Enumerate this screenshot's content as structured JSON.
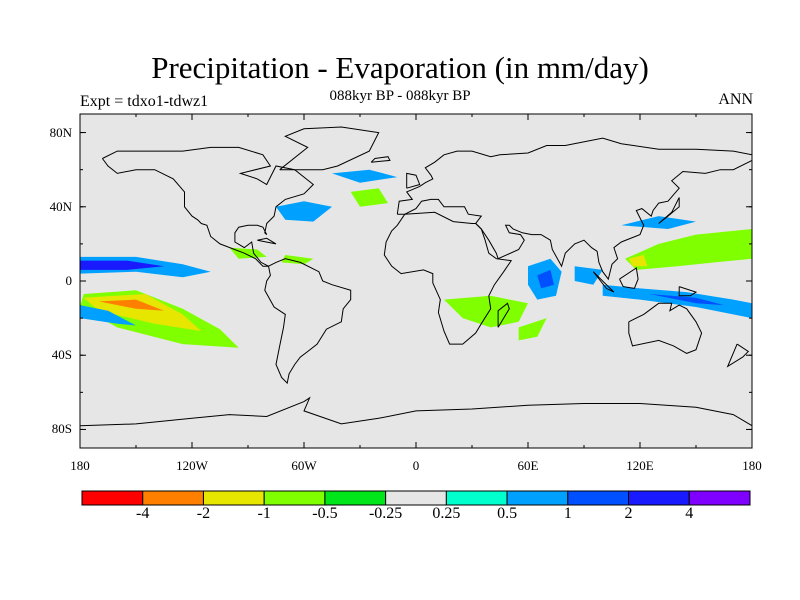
{
  "title": "Precipitation - Evaporation (in mm/day)",
  "subtitle": "088kyr BP - 088kyr BP",
  "left_string": "Expt = tdxo1-tdwz1",
  "right_string": "ANN",
  "map": {
    "projection": "cylindrical-equidistant",
    "lon_range": [
      -180,
      180
    ],
    "lat_range": [
      -90,
      90
    ],
    "background_color": "#e6e6e6",
    "lat_ticks": [
      {
        "lat": 80,
        "label": "80N"
      },
      {
        "lat": 40,
        "label": "40N"
      },
      {
        "lat": 0,
        "label": "0"
      },
      {
        "lat": -40,
        "label": "40S"
      },
      {
        "lat": -80,
        "label": "80S"
      }
    ],
    "lon_ticks": [
      {
        "lon": -180,
        "label": "180"
      },
      {
        "lon": -120,
        "label": "120W"
      },
      {
        "lon": -60,
        "label": "60W"
      },
      {
        "lon": 0,
        "label": "0"
      },
      {
        "lon": 60,
        "label": "60E"
      },
      {
        "lon": 120,
        "label": "120E"
      },
      {
        "lon": 180,
        "label": "180"
      }
    ]
  },
  "colorbar": {
    "colors": [
      "#ff0000",
      "#ff7f00",
      "#e6e600",
      "#80ff00",
      "#00e61a",
      "#e6e6e6",
      "#00ffcc",
      "#00a0ff",
      "#0050ff",
      "#1a1aff",
      "#8000ff"
    ],
    "labels": [
      "-4",
      "-2",
      "-1",
      "-0.5",
      "-0.25",
      "0.25",
      "0.5",
      "1",
      "2",
      "4"
    ]
  },
  "fields": [
    {
      "level": "0.5",
      "points": [
        [
          -180,
          13
        ],
        [
          -150,
          13
        ],
        [
          -125,
          9
        ],
        [
          -110,
          5
        ],
        [
          -125,
          2
        ],
        [
          -150,
          5
        ],
        [
          -180,
          4
        ]
      ]
    },
    {
      "level": "2",
      "points": [
        [
          -180,
          11
        ],
        [
          -155,
          11
        ],
        [
          -135,
          8
        ],
        [
          -155,
          6
        ],
        [
          -180,
          6
        ]
      ]
    },
    {
      "level": "-0.5",
      "points": [
        [
          -178,
          -7
        ],
        [
          -150,
          -5
        ],
        [
          -125,
          -15
        ],
        [
          -105,
          -26
        ],
        [
          -95,
          -36
        ],
        [
          -125,
          -34
        ],
        [
          -160,
          -25
        ],
        [
          -180,
          -14
        ]
      ]
    },
    {
      "level": "-1",
      "points": [
        [
          -178,
          -9
        ],
        [
          -145,
          -7
        ],
        [
          -125,
          -18
        ],
        [
          -115,
          -27
        ],
        [
          -140,
          -23
        ],
        [
          -170,
          -16
        ]
      ]
    },
    {
      "level": "-2",
      "points": [
        [
          -170,
          -11
        ],
        [
          -150,
          -10
        ],
        [
          -135,
          -16
        ],
        [
          -150,
          -15
        ]
      ]
    },
    {
      "level": "0.5",
      "points": [
        [
          -180,
          -13
        ],
        [
          -165,
          -16
        ],
        [
          -150,
          -24
        ],
        [
          -160,
          -23
        ],
        [
          -180,
          -20
        ]
      ]
    },
    {
      "level": "-0.5",
      "points": [
        [
          -100,
          18
        ],
        [
          -85,
          17
        ],
        [
          -80,
          13
        ],
        [
          -95,
          12
        ]
      ]
    },
    {
      "level": "-0.5",
      "points": [
        [
          -70,
          14
        ],
        [
          -55,
          12
        ],
        [
          -60,
          9
        ],
        [
          -72,
          10
        ]
      ]
    },
    {
      "level": "0.5",
      "points": [
        [
          -75,
          40
        ],
        [
          -60,
          43
        ],
        [
          -45,
          40
        ],
        [
          -55,
          32
        ],
        [
          -70,
          33
        ]
      ]
    },
    {
      "level": "-0.5",
      "points": [
        [
          -35,
          48
        ],
        [
          -20,
          50
        ],
        [
          -15,
          42
        ],
        [
          -30,
          40
        ]
      ]
    },
    {
      "level": "0.5",
      "points": [
        [
          -45,
          58
        ],
        [
          -25,
          60
        ],
        [
          -10,
          56
        ],
        [
          -30,
          53
        ]
      ]
    },
    {
      "level": "-0.5",
      "points": [
        [
          15,
          -10
        ],
        [
          40,
          -8
        ],
        [
          60,
          -12
        ],
        [
          55,
          -22
        ],
        [
          40,
          -25
        ],
        [
          25,
          -20
        ]
      ]
    },
    {
      "level": "-0.5",
      "points": [
        [
          55,
          -25
        ],
        [
          70,
          -20
        ],
        [
          65,
          -30
        ],
        [
          55,
          -32
        ]
      ]
    },
    {
      "level": "0.5",
      "points": [
        [
          60,
          8
        ],
        [
          72,
          12
        ],
        [
          78,
          5
        ],
        [
          75,
          -8
        ],
        [
          65,
          -10
        ],
        [
          60,
          -2
        ]
      ]
    },
    {
      "level": "1",
      "points": [
        [
          65,
          3
        ],
        [
          72,
          6
        ],
        [
          74,
          -2
        ],
        [
          67,
          -4
        ]
      ]
    },
    {
      "level": "-0.5",
      "points": [
        [
          112,
          12
        ],
        [
          130,
          20
        ],
        [
          150,
          25
        ],
        [
          170,
          27
        ],
        [
          180,
          28
        ],
        [
          180,
          12
        ],
        [
          160,
          10
        ],
        [
          140,
          8
        ],
        [
          118,
          6
        ]
      ]
    },
    {
      "level": "-1",
      "points": [
        [
          114,
          12
        ],
        [
          122,
          14
        ],
        [
          124,
          8
        ],
        [
          116,
          8
        ]
      ]
    },
    {
      "level": "0.5",
      "points": [
        [
          100,
          -2
        ],
        [
          120,
          -4
        ],
        [
          145,
          -6
        ],
        [
          170,
          -10
        ],
        [
          180,
          -12
        ],
        [
          180,
          -20
        ],
        [
          150,
          -14
        ],
        [
          120,
          -10
        ],
        [
          100,
          -8
        ]
      ]
    },
    {
      "level": "1",
      "points": [
        [
          125,
          -7
        ],
        [
          150,
          -9
        ],
        [
          165,
          -13
        ],
        [
          150,
          -12
        ]
      ]
    },
    {
      "level": "0.5",
      "points": [
        [
          85,
          8
        ],
        [
          100,
          6
        ],
        [
          95,
          -2
        ],
        [
          85,
          0
        ]
      ]
    },
    {
      "level": "0.5",
      "points": [
        [
          110,
          30
        ],
        [
          130,
          35
        ],
        [
          150,
          32
        ],
        [
          135,
          28
        ]
      ]
    }
  ],
  "coastlines": [
    [
      [
        -168,
        66
      ],
      [
        -160,
        70
      ],
      [
        -140,
        70
      ],
      [
        -125,
        70
      ],
      [
        -110,
        72
      ],
      [
        -95,
        72
      ],
      [
        -82,
        68
      ],
      [
        -78,
        62
      ],
      [
        -94,
        58
      ],
      [
        -85,
        55
      ],
      [
        -80,
        52
      ],
      [
        -75,
        62
      ],
      [
        -65,
        60
      ],
      [
        -55,
        52
      ],
      [
        -60,
        47
      ],
      [
        -70,
        44
      ],
      [
        -75,
        40
      ],
      [
        -76,
        35
      ],
      [
        -80,
        31
      ],
      [
        -81,
        26
      ],
      [
        -80,
        25
      ],
      [
        -82,
        29
      ],
      [
        -85,
        30
      ],
      [
        -90,
        30
      ],
      [
        -95,
        29
      ],
      [
        -97,
        26
      ],
      [
        -97,
        21
      ],
      [
        -92,
        18
      ],
      [
        -88,
        21
      ],
      [
        -87,
        15
      ],
      [
        -83,
        10
      ],
      [
        -79,
        8
      ],
      [
        -82,
        8
      ],
      [
        -86,
        12
      ],
      [
        -92,
        15
      ],
      [
        -105,
        20
      ],
      [
        -110,
        24
      ],
      [
        -112,
        30
      ],
      [
        -115,
        31
      ],
      [
        -117,
        33
      ],
      [
        -120,
        35
      ],
      [
        -124,
        40
      ],
      [
        -124,
        48
      ],
      [
        -130,
        55
      ],
      [
        -140,
        60
      ],
      [
        -150,
        60
      ],
      [
        -160,
        58
      ],
      [
        -165,
        62
      ],
      [
        -168,
        66
      ]
    ],
    [
      [
        -79,
        8
      ],
      [
        -75,
        10
      ],
      [
        -70,
        12
      ],
      [
        -62,
        10
      ],
      [
        -52,
        5
      ],
      [
        -50,
        0
      ],
      [
        -45,
        -2
      ],
      [
        -35,
        -5
      ],
      [
        -35,
        -10
      ],
      [
        -39,
        -15
      ],
      [
        -40,
        -22
      ],
      [
        -48,
        -26
      ],
      [
        -53,
        -34
      ],
      [
        -58,
        -38
      ],
      [
        -62,
        -41
      ],
      [
        -65,
        -45
      ],
      [
        -68,
        -50
      ],
      [
        -69,
        -55
      ],
      [
        -72,
        -52
      ],
      [
        -75,
        -45
      ],
      [
        -73,
        -35
      ],
      [
        -71,
        -25
      ],
      [
        -70,
        -18
      ],
      [
        -76,
        -14
      ],
      [
        -81,
        -5
      ],
      [
        -80,
        0
      ],
      [
        -78,
        3
      ],
      [
        -79,
        8
      ]
    ],
    [
      [
        -10,
        36
      ],
      [
        -9,
        43
      ],
      [
        -2,
        44
      ],
      [
        -5,
        48
      ],
      [
        2,
        51
      ],
      [
        5,
        53
      ],
      [
        9,
        55
      ],
      [
        8,
        57
      ],
      [
        5,
        61
      ],
      [
        10,
        64
      ],
      [
        15,
        68
      ],
      [
        22,
        70
      ],
      [
        30,
        70
      ],
      [
        40,
        67
      ],
      [
        45,
        68
      ],
      [
        60,
        69
      ],
      [
        70,
        73
      ],
      [
        80,
        73
      ],
      [
        100,
        77
      ],
      [
        110,
        74
      ],
      [
        130,
        71
      ],
      [
        150,
        71
      ],
      [
        170,
        70
      ],
      [
        180,
        68
      ],
      [
        180,
        65
      ],
      [
        170,
        60
      ],
      [
        163,
        60
      ],
      [
        155,
        58
      ],
      [
        143,
        59
      ],
      [
        137,
        54
      ],
      [
        141,
        50
      ],
      [
        135,
        43
      ],
      [
        130,
        42
      ],
      [
        127,
        38
      ],
      [
        126,
        35
      ],
      [
        121,
        39
      ],
      [
        118,
        38
      ],
      [
        122,
        30
      ],
      [
        120,
        25
      ],
      [
        110,
        21
      ],
      [
        106,
        18
      ],
      [
        108,
        12
      ],
      [
        105,
        9
      ],
      [
        103,
        1
      ],
      [
        100,
        5
      ],
      [
        98,
        10
      ],
      [
        97,
        16
      ],
      [
        94,
        18
      ],
      [
        90,
        22
      ],
      [
        85,
        20
      ],
      [
        80,
        15
      ],
      [
        78,
        8
      ],
      [
        73,
        17
      ],
      [
        72,
        22
      ],
      [
        67,
        25
      ],
      [
        62,
        25
      ],
      [
        57,
        26
      ],
      [
        52,
        28
      ],
      [
        50,
        30
      ],
      [
        48,
        30
      ],
      [
        50,
        26
      ],
      [
        56,
        25
      ],
      [
        58,
        22
      ],
      [
        55,
        17
      ],
      [
        44,
        12
      ],
      [
        43,
        15
      ],
      [
        39,
        22
      ],
      [
        35,
        28
      ],
      [
        32,
        31
      ],
      [
        35,
        35
      ],
      [
        28,
        36
      ],
      [
        26,
        40
      ],
      [
        23,
        40
      ],
      [
        20,
        40
      ],
      [
        15,
        40
      ],
      [
        12,
        44
      ],
      [
        8,
        44
      ],
      [
        3,
        43
      ],
      [
        0,
        39
      ],
      [
        -6,
        36
      ],
      [
        -10,
        36
      ]
    ],
    [
      [
        -6,
        36
      ],
      [
        10,
        37
      ],
      [
        20,
        32
      ],
      [
        30,
        31
      ],
      [
        32,
        31
      ],
      [
        35,
        28
      ],
      [
        37,
        22
      ],
      [
        39,
        15
      ],
      [
        43,
        12
      ],
      [
        51,
        11
      ],
      [
        47,
        5
      ],
      [
        42,
        -2
      ],
      [
        39,
        -8
      ],
      [
        40,
        -15
      ],
      [
        35,
        -23
      ],
      [
        32,
        -28
      ],
      [
        25,
        -34
      ],
      [
        18,
        -34
      ],
      [
        15,
        -27
      ],
      [
        12,
        -17
      ],
      [
        13,
        -10
      ],
      [
        9,
        -1
      ],
      [
        9,
        4
      ],
      [
        4,
        6
      ],
      [
        -8,
        4
      ],
      [
        -13,
        8
      ],
      [
        -17,
        14
      ],
      [
        -16,
        21
      ],
      [
        -13,
        27
      ],
      [
        -10,
        30
      ],
      [
        -6,
        36
      ]
    ],
    [
      [
        114,
        -22
      ],
      [
        122,
        -18
      ],
      [
        130,
        -12
      ],
      [
        137,
        -12
      ],
      [
        136,
        -16
      ],
      [
        141,
        -13
      ],
      [
        145,
        -15
      ],
      [
        150,
        -22
      ],
      [
        153,
        -28
      ],
      [
        150,
        -37
      ],
      [
        145,
        -39
      ],
      [
        138,
        -35
      ],
      [
        130,
        -32
      ],
      [
        116,
        -35
      ],
      [
        114,
        -28
      ],
      [
        114,
        -22
      ]
    ],
    [
      [
        44,
        -25
      ],
      [
        50,
        -15
      ],
      [
        49,
        -12
      ],
      [
        44,
        -16
      ],
      [
        44,
        -25
      ]
    ],
    [
      [
        -180,
        -78
      ],
      [
        -150,
        -77
      ],
      [
        -120,
        -74
      ],
      [
        -100,
        -72
      ],
      [
        -80,
        -73
      ],
      [
        -60,
        -65
      ],
      [
        -57,
        -63
      ],
      [
        -60,
        -70
      ],
      [
        -40,
        -77
      ],
      [
        -20,
        -74
      ],
      [
        0,
        -70
      ],
      [
        30,
        -69
      ],
      [
        60,
        -67
      ],
      [
        90,
        -66
      ],
      [
        120,
        -66
      ],
      [
        150,
        -68
      ],
      [
        170,
        -72
      ],
      [
        180,
        -78
      ]
    ],
    [
      [
        -73,
        60
      ],
      [
        -50,
        60
      ],
      [
        -42,
        62
      ],
      [
        -25,
        70
      ],
      [
        -20,
        80
      ],
      [
        -40,
        83
      ],
      [
        -60,
        82
      ],
      [
        -70,
        78
      ],
      [
        -58,
        72
      ],
      [
        -73,
        60
      ]
    ],
    [
      [
        -24,
        64
      ],
      [
        -14,
        65
      ],
      [
        -15,
        67
      ],
      [
        -22,
        66
      ],
      [
        -24,
        64
      ]
    ],
    [
      [
        -5,
        50
      ],
      [
        2,
        52
      ],
      [
        0,
        57
      ],
      [
        -5,
        58
      ],
      [
        -5,
        50
      ]
    ],
    [
      [
        130,
        31
      ],
      [
        135,
        35
      ],
      [
        141,
        40
      ],
      [
        141,
        45
      ],
      [
        137,
        37
      ],
      [
        130,
        31
      ]
    ],
    [
      [
        141,
        -3
      ],
      [
        150,
        -6
      ],
      [
        147,
        -8
      ],
      [
        141,
        -8
      ],
      [
        141,
        -3
      ]
    ],
    [
      [
        95,
        5
      ],
      [
        106,
        -6
      ],
      [
        102,
        -4
      ],
      [
        95,
        5
      ]
    ],
    [
      [
        109,
        1
      ],
      [
        118,
        7
      ],
      [
        119,
        1
      ],
      [
        117,
        -4
      ],
      [
        111,
        -3
      ],
      [
        109,
        1
      ]
    ],
    [
      [
        172,
        -34
      ],
      [
        178,
        -38
      ],
      [
        175,
        -41
      ],
      [
        167,
        -46
      ],
      [
        172,
        -34
      ]
    ],
    [
      [
        -85,
        22
      ],
      [
        -75,
        20
      ],
      [
        -80,
        23
      ],
      [
        -85,
        22
      ]
    ]
  ]
}
